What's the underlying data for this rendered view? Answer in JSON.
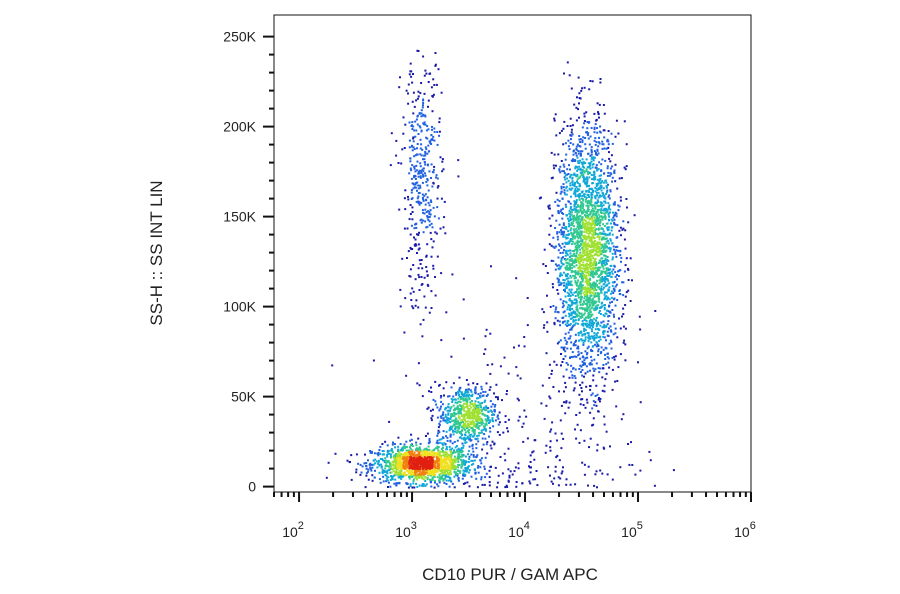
{
  "chart_data": {
    "type": "scatter",
    "style": "density-dot-plot",
    "xlabel": "CD10 PUR / GAM APC",
    "ylabel": "SS-H :: SS INT LIN",
    "x_scale": "log",
    "y_scale": "linear",
    "xlim": [
      60,
      1000000
    ],
    "ylim": [
      -3000,
      262000
    ],
    "x_ticks": [
      {
        "value": 100,
        "base": "10",
        "exp": "2"
      },
      {
        "value": 1000,
        "base": "10",
        "exp": "3"
      },
      {
        "value": 10000,
        "base": "10",
        "exp": "4"
      },
      {
        "value": 100000,
        "base": "10",
        "exp": "5"
      },
      {
        "value": 1000000,
        "base": "10",
        "exp": "6"
      }
    ],
    "y_ticks": [
      {
        "value": 0,
        "label": "0"
      },
      {
        "value": 50000,
        "label": "50K"
      },
      {
        "value": 100000,
        "label": "100K"
      },
      {
        "value": 150000,
        "label": "150K"
      },
      {
        "value": 200000,
        "label": "200K"
      },
      {
        "value": 250000,
        "label": "250K"
      }
    ],
    "grid": false,
    "legend": "none",
    "density_colors": [
      "#1a1aa8",
      "#2060e0",
      "#10a8d8",
      "#30c890",
      "#a0e030",
      "#f0e020",
      "#f08010",
      "#e02010"
    ],
    "populations": [
      {
        "x_center": 1200,
        "y_center": 13000,
        "x_spread_log": 0.22,
        "y_spread": 5000,
        "count": 1400
      },
      {
        "x_center": 3000,
        "y_center": 40000,
        "x_spread_log": 0.13,
        "y_spread": 8500,
        "count": 650
      },
      {
        "x_center": 35000,
        "y_center": 130000,
        "x_spread_log": 0.14,
        "y_spread": 35000,
        "count": 2600
      },
      {
        "x_center": 1200,
        "y_center": 170000,
        "x_spread_log": 0.09,
        "y_spread": 35000,
        "count": 420
      },
      {
        "x_center": 9000,
        "y_center": 20000,
        "x_spread_log": 0.55,
        "y_spread": 40000,
        "count": 260
      }
    ]
  }
}
